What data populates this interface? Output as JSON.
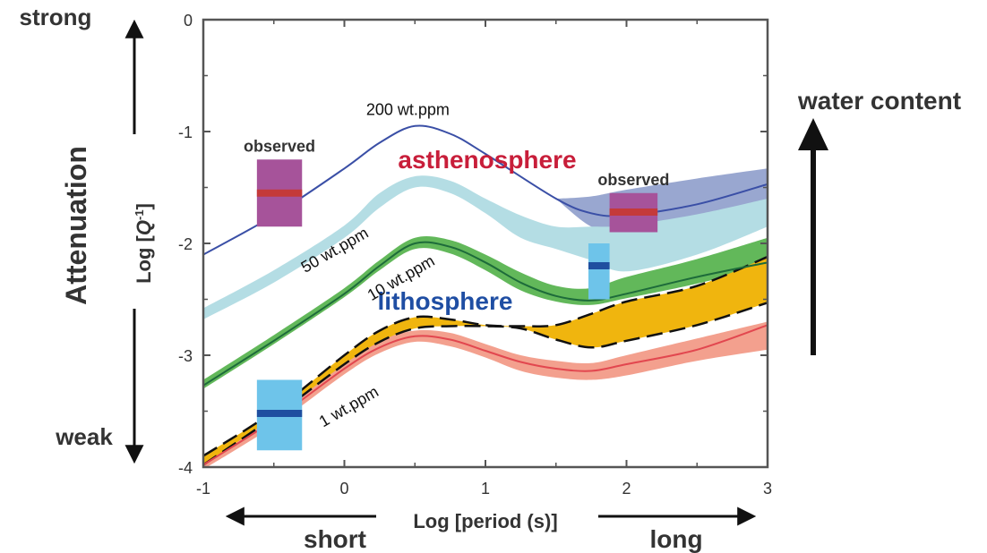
{
  "chart_data": {
    "type": "line",
    "xlabel": "Log [period (s)]",
    "ylabel_prefix": "Log [",
    "ylabel_q": "Q",
    "ylabel_sup": "-1",
    "ylabel_suffix": "]",
    "xlim": [
      -1,
      3
    ],
    "ylim": [
      -4,
      0
    ],
    "xticks": [
      -1,
      0,
      1,
      2,
      3
    ],
    "yticks": [
      0,
      -1,
      -2,
      -3,
      -4
    ],
    "side_labels": {
      "strong": "strong",
      "weak": "weak",
      "attenuation": "Attenuation",
      "water_content": "water content",
      "short": "short",
      "long": "long"
    },
    "region_labels": {
      "asthenosphere": "asthenosphere",
      "lithosphere": "lithosphere"
    },
    "observed_label": "observed",
    "colors": {
      "series_200": "#3a4fa6",
      "band_200": "#8e9dcb",
      "band_200_light": "#a9b6d8",
      "band_50": "#b4dde4",
      "series_10": "#1d6b3a",
      "band_10": "#62b85a",
      "series_1": "#e2474f",
      "band_1": "#f3a08e",
      "band_dashed": "#f0b50e",
      "obs_astheno": "#a6539a",
      "obs_astheno_line": "#c43a3a",
      "obs_litho": "#6ec4ea",
      "obs_litho_line": "#1f4fa0",
      "asthenosphere_text": "#c81e3a",
      "lithosphere_text": "#1f4ea3"
    },
    "series": [
      {
        "name": "200 wt.ppm",
        "line": [
          [
            -1,
            -2.1
          ],
          [
            -0.5,
            -1.75
          ],
          [
            0,
            -1.33
          ],
          [
            0.25,
            -1.1
          ],
          [
            0.5,
            -0.95
          ],
          [
            0.75,
            -1.02
          ],
          [
            1,
            -1.2
          ],
          [
            1.5,
            -1.6
          ],
          [
            1.75,
            -1.73
          ],
          [
            2,
            -1.75
          ],
          [
            2.5,
            -1.65
          ],
          [
            3,
            -1.47
          ]
        ],
        "band": {
          "x": [
            1.5,
            1.75,
            2,
            2.5,
            3
          ],
          "lower": [
            -1.6,
            -1.85,
            -1.92,
            -1.85,
            -1.7
          ],
          "upper": [
            -1.6,
            -1.58,
            -1.52,
            -1.42,
            -1.33
          ]
        }
      },
      {
        "name": "50 wt.ppm",
        "band": {
          "x": [
            -1,
            -0.5,
            0,
            0.25,
            0.5,
            0.75,
            1,
            1.25,
            1.5,
            1.75,
            2,
            2.5,
            3
          ],
          "lower": [
            -2.68,
            -2.35,
            -1.95,
            -1.68,
            -1.5,
            -1.55,
            -1.73,
            -1.95,
            -2.05,
            -2.15,
            -2.25,
            -2.1,
            -1.85
          ],
          "upper": [
            -2.58,
            -2.24,
            -1.84,
            -1.55,
            -1.4,
            -1.44,
            -1.6,
            -1.75,
            -1.85,
            -1.85,
            -1.84,
            -1.74,
            -1.6
          ]
        }
      },
      {
        "name": "10 wt.ppm",
        "line": [
          [
            -1,
            -3.27
          ],
          [
            -0.5,
            -2.87
          ],
          [
            0,
            -2.45
          ],
          [
            0.25,
            -2.2
          ],
          [
            0.5,
            -2.0
          ],
          [
            0.75,
            -2.03
          ],
          [
            1,
            -2.17
          ],
          [
            1.25,
            -2.35
          ],
          [
            1.5,
            -2.47
          ],
          [
            1.75,
            -2.51
          ],
          [
            2,
            -2.45
          ],
          [
            2.5,
            -2.3
          ],
          [
            3,
            -2.17
          ]
        ],
        "band": {
          "x": [
            -1,
            -0.5,
            0,
            0.25,
            0.5,
            0.75,
            1,
            1.25,
            1.5,
            1.75,
            2,
            2.5,
            3
          ],
          "lower": [
            -3.3,
            -2.9,
            -2.48,
            -2.24,
            -2.05,
            -2.09,
            -2.24,
            -2.42,
            -2.52,
            -2.55,
            -2.49,
            -2.36,
            -2.2
          ],
          "upper": [
            -3.22,
            -2.82,
            -2.4,
            -2.15,
            -1.95,
            -1.97,
            -2.1,
            -2.26,
            -2.38,
            -2.4,
            -2.3,
            -2.14,
            -1.95
          ]
        }
      },
      {
        "name": "1 wt.ppm",
        "line": [
          [
            -1,
            -3.98
          ],
          [
            -0.5,
            -3.58
          ],
          [
            0,
            -3.12
          ],
          [
            0.25,
            -2.93
          ],
          [
            0.5,
            -2.83
          ],
          [
            0.75,
            -2.86
          ],
          [
            1,
            -2.96
          ],
          [
            1.25,
            -3.06
          ],
          [
            1.5,
            -3.12
          ],
          [
            1.75,
            -3.14
          ],
          [
            2,
            -3.08
          ],
          [
            2.5,
            -2.95
          ],
          [
            3,
            -2.73
          ]
        ],
        "band": {
          "x": [
            -1,
            -0.5,
            0,
            0.25,
            0.5,
            0.75,
            1,
            1.25,
            1.5,
            1.75,
            2,
            2.5,
            3
          ],
          "lower": [
            -4.02,
            -3.63,
            -3.17,
            -2.98,
            -2.88,
            -2.92,
            -3.02,
            -3.14,
            -3.2,
            -3.22,
            -3.18,
            -3.05,
            -2.95
          ],
          "upper": [
            -3.93,
            -3.52,
            -3.06,
            -2.87,
            -2.78,
            -2.8,
            -2.9,
            -3.0,
            -3.05,
            -3.07,
            -3.0,
            -2.85,
            -2.7
          ]
        }
      },
      {
        "band_dashed": {
          "x": [
            -1,
            -0.5,
            0,
            0.25,
            0.5,
            0.75,
            1,
            1.25,
            1.5,
            1.75,
            2,
            2.5,
            3
          ],
          "lower": [
            -3.98,
            -3.55,
            -3.08,
            -2.88,
            -2.76,
            -2.74,
            -2.74,
            -2.76,
            -2.86,
            -2.93,
            -2.87,
            -2.73,
            -2.53
          ],
          "upper": [
            -3.9,
            -3.5,
            -3.0,
            -2.78,
            -2.66,
            -2.68,
            -2.73,
            -2.74,
            -2.73,
            -2.63,
            -2.52,
            -2.38,
            -2.12
          ]
        }
      }
    ],
    "series_labels": [
      {
        "text": "200 wt.ppm",
        "x": 0.45,
        "y": -0.85,
        "rotate": 0
      },
      {
        "text": "50 wt.ppm",
        "x": -0.05,
        "y": -2.1,
        "rotate": -30
      },
      {
        "text": "10 wt.ppm",
        "x": 0.42,
        "y": -2.35,
        "rotate": -30
      },
      {
        "text": "1 wt.ppm",
        "x": 0.05,
        "y": -3.5,
        "rotate": -30
      }
    ],
    "observations": [
      {
        "group": "asthenosphere",
        "x": [
          -0.62,
          -0.3
        ],
        "y": [
          -1.85,
          -1.25
        ],
        "mean": -1.55
      },
      {
        "group": "asthenosphere",
        "x": [
          1.88,
          2.22
        ],
        "y": [
          -1.9,
          -1.55
        ],
        "mean": -1.72
      },
      {
        "group": "lithosphere",
        "x": [
          1.73,
          1.88
        ],
        "y": [
          -2.5,
          -2.0
        ],
        "mean": -2.2
      },
      {
        "group": "lithosphere",
        "x": [
          -0.62,
          -0.3
        ],
        "y": [
          -3.85,
          -3.22
        ],
        "mean": -3.52
      }
    ],
    "observed_labels": [
      {
        "text": "observed",
        "x": -0.46,
        "y": -1.18
      },
      {
        "text": "observed",
        "x": 2.05,
        "y": -1.48
      }
    ]
  }
}
